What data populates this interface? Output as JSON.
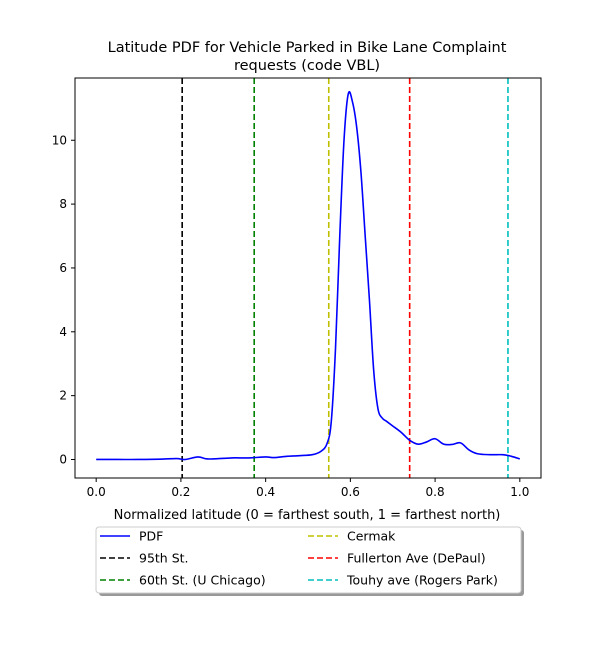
{
  "chart_data": {
    "type": "line",
    "title_line1": "Latitude PDF for Vehicle Parked in Bike Lane Complaint",
    "title_line2": "requests (code VBL)",
    "xlabel": "Normalized latitude (0 = farthest south, 1 = farthest north)",
    "ylabel": "",
    "xlim": [
      -0.05,
      1.05
    ],
    "ylim": [
      -0.58,
      11.95
    ],
    "xticks": [
      0.0,
      0.2,
      0.4,
      0.6,
      0.8,
      1.0
    ],
    "xtick_labels": [
      "0.0",
      "0.2",
      "0.4",
      "0.6",
      "0.8",
      "1.0"
    ],
    "yticks": [
      0,
      2,
      4,
      6,
      8,
      10
    ],
    "ytick_labels": [
      "0",
      "2",
      "4",
      "6",
      "8",
      "10"
    ],
    "grid": false,
    "legend_position": "below-plot",
    "series": [
      {
        "name": "PDF",
        "color": "#0000ff",
        "style": "solid",
        "x": [
          0.0,
          0.05,
          0.1,
          0.15,
          0.19,
          0.21,
          0.24,
          0.26,
          0.28,
          0.32,
          0.36,
          0.4,
          0.42,
          0.45,
          0.48,
          0.51,
          0.53,
          0.545,
          0.555,
          0.565,
          0.575,
          0.585,
          0.595,
          0.605,
          0.615,
          0.625,
          0.635,
          0.645,
          0.655,
          0.665,
          0.675,
          0.685,
          0.7,
          0.72,
          0.74,
          0.76,
          0.78,
          0.8,
          0.82,
          0.84,
          0.86,
          0.88,
          0.9,
          0.93,
          0.96,
          0.98,
          1.0
        ],
        "y": [
          0.0,
          0.0,
          0.0,
          0.01,
          0.03,
          0.0,
          0.08,
          0.02,
          0.02,
          0.05,
          0.05,
          0.08,
          0.06,
          0.1,
          0.12,
          0.15,
          0.25,
          0.5,
          1.2,
          3.5,
          7.0,
          10.0,
          11.45,
          11.2,
          10.4,
          9.0,
          7.0,
          5.0,
          2.8,
          1.6,
          1.3,
          1.2,
          1.05,
          0.85,
          0.6,
          0.48,
          0.55,
          0.65,
          0.48,
          0.47,
          0.52,
          0.3,
          0.18,
          0.15,
          0.15,
          0.1,
          0.02
        ]
      }
    ],
    "vlines": [
      {
        "name": "95th St.",
        "x": 0.203,
        "color": "#000000"
      },
      {
        "name": "60th St. (U Chicago)",
        "x": 0.373,
        "color": "#008000"
      },
      {
        "name": "Cermak",
        "x": 0.549,
        "color": "#bfbf00"
      },
      {
        "name": "Fullerton Ave (DePaul)",
        "x": 0.74,
        "color": "#ff0000"
      },
      {
        "name": "Touhy ave (Rogers Park)",
        "x": 0.972,
        "color": "#00bfbf"
      }
    ],
    "legend_order": [
      "PDF",
      "95th St.",
      "60th St. (U Chicago)",
      "Cermak",
      "Fullerton Ave (DePaul)",
      "Touhy ave (Rogers Park)"
    ]
  }
}
